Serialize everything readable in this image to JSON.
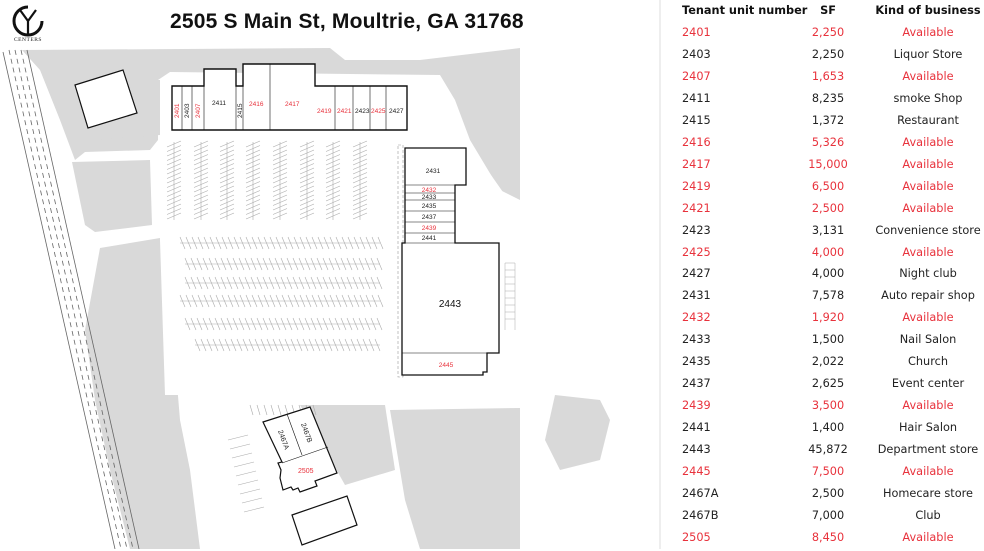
{
  "logo": {
    "text": "CENTERS"
  },
  "title": "2505 S Main St, Moultrie, GA 31768",
  "colors": {
    "available": "#e8323c",
    "occupied": "#222222",
    "landscape": "#d9d9d9"
  },
  "table": {
    "headers": [
      "Tenant unit number",
      "SF",
      "Kind of business"
    ],
    "rows": [
      {
        "unit": "2401",
        "sf": "2,250",
        "business": "Available",
        "available": true
      },
      {
        "unit": "2403",
        "sf": "2,250",
        "business": "Liquor Store",
        "available": false
      },
      {
        "unit": "2407",
        "sf": "1,653",
        "business": "Available",
        "available": true
      },
      {
        "unit": "2411",
        "sf": "8,235",
        "business": "smoke Shop",
        "available": false
      },
      {
        "unit": "2415",
        "sf": "1,372",
        "business": "Restaurant",
        "available": false
      },
      {
        "unit": "2416",
        "sf": "5,326",
        "business": "Available",
        "available": true
      },
      {
        "unit": "2417",
        "sf": "15,000",
        "business": "Available",
        "available": true
      },
      {
        "unit": "2419",
        "sf": "6,500",
        "business": "Available",
        "available": true
      },
      {
        "unit": "2421",
        "sf": "2,500",
        "business": "Available",
        "available": true
      },
      {
        "unit": "2423",
        "sf": "3,131",
        "business": "Convenience store",
        "available": false
      },
      {
        "unit": "2425",
        "sf": "4,000",
        "business": "Available",
        "available": true
      },
      {
        "unit": "2427",
        "sf": "4,000",
        "business": "Night club",
        "available": false
      },
      {
        "unit": "2431",
        "sf": "7,578",
        "business": "Auto repair shop",
        "available": false
      },
      {
        "unit": "2432",
        "sf": "1,920",
        "business": "Available",
        "available": true
      },
      {
        "unit": "2433",
        "sf": "1,500",
        "business": "Nail Salon",
        "available": false
      },
      {
        "unit": "2435",
        "sf": "2,022",
        "business": "Church",
        "available": false
      },
      {
        "unit": "2437",
        "sf": "2,625",
        "business": "Event center",
        "available": false
      },
      {
        "unit": "2439",
        "sf": "3,500",
        "business": "Available",
        "available": true
      },
      {
        "unit": "2441",
        "sf": "1,400",
        "business": "Hair Salon",
        "available": false
      },
      {
        "unit": "2443",
        "sf": "45,872",
        "business": "Department store",
        "available": false
      },
      {
        "unit": "2445",
        "sf": "7,500",
        "business": "Available",
        "available": true
      },
      {
        "unit": "2467A",
        "sf": "2,500",
        "business": "Homecare store",
        "available": false
      },
      {
        "unit": "2467B",
        "sf": "7,000",
        "business": "Club",
        "available": false
      },
      {
        "unit": "2505",
        "sf": "8,450",
        "business": "Available",
        "available": true
      }
    ]
  },
  "plan_labels": {
    "u2401": "2401",
    "u2403": "2403",
    "u2407": "2407",
    "u2411": "2411",
    "u2415": "2415",
    "u2416": "2416",
    "u2417": "2417",
    "u2419": "2419",
    "u2421": "2421",
    "u2423": "2423",
    "u2425": "2425",
    "u2427": "2427",
    "u2431": "2431",
    "u2432": "2432",
    "u2433": "2433",
    "u2435": "2435",
    "u2437": "2437",
    "u2439": "2439",
    "u2441": "2441",
    "u2443": "2443",
    "u2445": "2445",
    "u2467A": "2467A",
    "u2467B": "2467B",
    "u2505": "2505"
  }
}
